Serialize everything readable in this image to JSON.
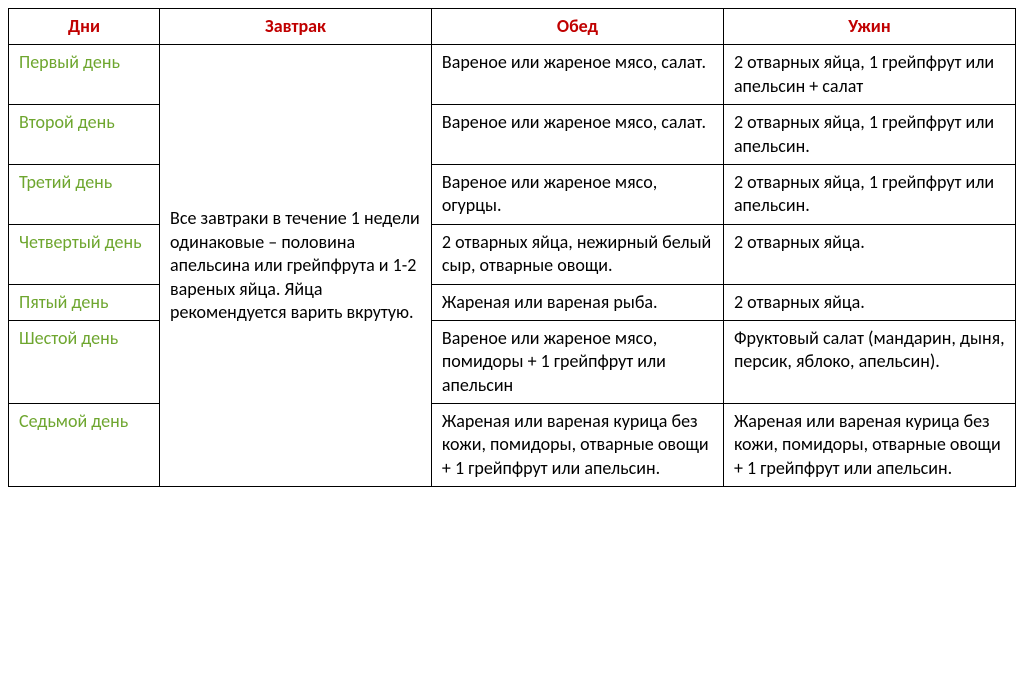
{
  "table": {
    "headers": {
      "days": "Дни",
      "breakfast": "Завтрак",
      "lunch": "Обед",
      "dinner": "Ужин"
    },
    "breakfast_note": "Все завтраки в течение 1 недели одинаковые – половина апельсина или грейпфрута и 1-2 вареных яйца. Яйца рекомендуется варить вкрутую.",
    "header_color": "#c00000",
    "day_color": "#6ea62f",
    "border_color": "#000000",
    "font_size_pt": 14,
    "rows": [
      {
        "day": "Первый день",
        "lunch": "Вареное или жареное мясо, салат.",
        "dinner": "2 отварных яйца, 1 грейпфрут или апельсин + салат"
      },
      {
        "day": "Второй день",
        "lunch": "Вареное или жареное мясо, салат.",
        "dinner": "2 отварных яйца, 1 грейпфрут или апельсин."
      },
      {
        "day": "Третий день",
        "lunch": "Вареное или жареное мясо, огурцы.",
        "dinner": "2 отварных яйца, 1 грейпфрут или апельсин."
      },
      {
        "day": "Четвертый день",
        "lunch": "2 отварных яйца, нежирный белый сыр, отварные овощи.",
        "dinner": "2 отварных яйца."
      },
      {
        "day": "Пятый день",
        "lunch": "Жареная или вареная рыба.",
        "dinner": "2 отварных яйца."
      },
      {
        "day": "Шестой день",
        "lunch": "Вареное или жареное мясо, помидоры + 1 грейпфрут или апельсин",
        "dinner": "Фруктовый салат (мандарин, дыня, персик, яблоко, апельсин)."
      },
      {
        "day": "Седьмой день",
        "lunch": "Жареная или вареная курица без кожи, помидоры, отварные овощи + 1 грейпфрут или апельсин.",
        "dinner": "Жареная или вареная курица без кожи, помидоры, отварные овощи + 1 грейпфрут или апельсин."
      }
    ]
  }
}
